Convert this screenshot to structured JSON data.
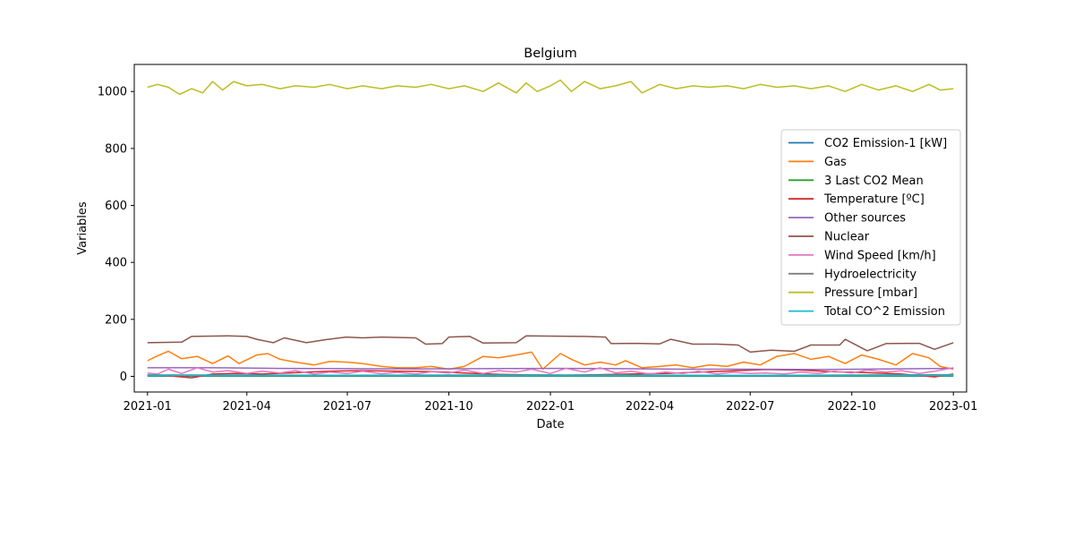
{
  "chart_data": {
    "type": "line",
    "title": "Belgium",
    "xlabel": "Date",
    "ylabel": "Variables",
    "x_range": [
      "2021-01-01",
      "2023-01-01"
    ],
    "xlim": [
      "2020-12-20",
      "2023-01-13"
    ],
    "ylim": [
      -55,
      1095
    ],
    "x_ticks": [
      {
        "date": "2021-01-01",
        "label": "2021-01"
      },
      {
        "date": "2021-04-01",
        "label": "2021-04"
      },
      {
        "date": "2021-07-01",
        "label": "2021-07"
      },
      {
        "date": "2021-10-01",
        "label": "2021-10"
      },
      {
        "date": "2022-01-01",
        "label": "2022-01"
      },
      {
        "date": "2022-04-01",
        "label": "2022-04"
      },
      {
        "date": "2022-07-01",
        "label": "2022-07"
      },
      {
        "date": "2022-10-01",
        "label": "2022-10"
      },
      {
        "date": "2023-01-01",
        "label": "2023-01"
      }
    ],
    "y_ticks": [
      0,
      200,
      400,
      600,
      800,
      1000
    ],
    "grid": false,
    "legend_position": "center-right",
    "series": [
      {
        "name": "CO2 Emission-1 [kW]",
        "color": "#1f77b4",
        "points": [
          [
            "2021-01-01",
            1
          ],
          [
            "2021-07-01",
            1
          ],
          [
            "2022-01-01",
            1
          ],
          [
            "2022-07-01",
            1
          ],
          [
            "2023-01-01",
            1
          ]
        ]
      },
      {
        "name": "Gas",
        "color": "#ff7f0e",
        "points": [
          [
            "2021-01-01",
            55
          ],
          [
            "2021-01-10",
            72
          ],
          [
            "2021-01-20",
            88
          ],
          [
            "2021-02-01",
            62
          ],
          [
            "2021-02-15",
            70
          ],
          [
            "2021-03-01",
            45
          ],
          [
            "2021-03-15",
            72
          ],
          [
            "2021-03-25",
            45
          ],
          [
            "2021-04-10",
            75
          ],
          [
            "2021-04-20",
            80
          ],
          [
            "2021-05-01",
            60
          ],
          [
            "2021-05-15",
            50
          ],
          [
            "2021-06-01",
            40
          ],
          [
            "2021-06-15",
            52
          ],
          [
            "2021-07-01",
            50
          ],
          [
            "2021-07-15",
            45
          ],
          [
            "2021-08-01",
            35
          ],
          [
            "2021-08-15",
            30
          ],
          [
            "2021-09-01",
            30
          ],
          [
            "2021-09-15",
            35
          ],
          [
            "2021-10-01",
            25
          ],
          [
            "2021-10-15",
            35
          ],
          [
            "2021-11-01",
            70
          ],
          [
            "2021-11-15",
            65
          ],
          [
            "2021-12-01",
            75
          ],
          [
            "2021-12-15",
            85
          ],
          [
            "2021-12-25",
            25
          ],
          [
            "2022-01-10",
            80
          ],
          [
            "2022-01-20",
            60
          ],
          [
            "2022-02-01",
            40
          ],
          [
            "2022-02-15",
            50
          ],
          [
            "2022-03-01",
            40
          ],
          [
            "2022-03-10",
            55
          ],
          [
            "2022-03-25",
            30
          ],
          [
            "2022-04-10",
            35
          ],
          [
            "2022-04-25",
            40
          ],
          [
            "2022-05-10",
            30
          ],
          [
            "2022-05-25",
            40
          ],
          [
            "2022-06-10",
            35
          ],
          [
            "2022-06-25",
            50
          ],
          [
            "2022-07-10",
            40
          ],
          [
            "2022-07-25",
            70
          ],
          [
            "2022-08-10",
            80
          ],
          [
            "2022-08-25",
            60
          ],
          [
            "2022-09-10",
            70
          ],
          [
            "2022-09-25",
            45
          ],
          [
            "2022-10-10",
            75
          ],
          [
            "2022-10-25",
            60
          ],
          [
            "2022-11-10",
            40
          ],
          [
            "2022-11-25",
            80
          ],
          [
            "2022-12-10",
            65
          ],
          [
            "2022-12-20",
            35
          ],
          [
            "2023-01-01",
            25
          ]
        ]
      },
      {
        "name": "3 Last CO2 Mean",
        "color": "#2ca02c",
        "points": [
          [
            "2021-01-01",
            2
          ],
          [
            "2021-07-01",
            2
          ],
          [
            "2022-01-01",
            2
          ],
          [
            "2022-07-01",
            2
          ],
          [
            "2023-01-01",
            2
          ]
        ]
      },
      {
        "name": "Temperature [ºC]",
        "color": "#d62728",
        "points": [
          [
            "2021-01-01",
            5
          ],
          [
            "2021-01-20",
            2
          ],
          [
            "2021-02-10",
            -5
          ],
          [
            "2021-03-01",
            8
          ],
          [
            "2021-03-20",
            10
          ],
          [
            "2021-04-15",
            8
          ],
          [
            "2021-05-15",
            13
          ],
          [
            "2021-06-15",
            18
          ],
          [
            "2021-07-15",
            20
          ],
          [
            "2021-08-15",
            18
          ],
          [
            "2021-09-15",
            17
          ],
          [
            "2021-10-15",
            12
          ],
          [
            "2021-11-15",
            7
          ],
          [
            "2021-12-15",
            5
          ],
          [
            "2022-01-15",
            4
          ],
          [
            "2022-02-15",
            6
          ],
          [
            "2022-03-15",
            8
          ],
          [
            "2022-04-15",
            10
          ],
          [
            "2022-05-15",
            15
          ],
          [
            "2022-06-15",
            19
          ],
          [
            "2022-07-15",
            24
          ],
          [
            "2022-08-15",
            22
          ],
          [
            "2022-09-15",
            16
          ],
          [
            "2022-10-15",
            13
          ],
          [
            "2022-11-15",
            8
          ],
          [
            "2022-12-15",
            -2
          ],
          [
            "2023-01-01",
            8
          ]
        ]
      },
      {
        "name": "Other sources",
        "color": "#9467bd",
        "points": [
          [
            "2021-01-01",
            30
          ],
          [
            "2021-03-01",
            30
          ],
          [
            "2021-05-01",
            28
          ],
          [
            "2021-07-01",
            27
          ],
          [
            "2021-09-01",
            26
          ],
          [
            "2021-11-01",
            27
          ],
          [
            "2022-01-01",
            28
          ],
          [
            "2022-03-01",
            27
          ],
          [
            "2022-05-01",
            25
          ],
          [
            "2022-07-01",
            25
          ],
          [
            "2022-09-01",
            24
          ],
          [
            "2022-11-01",
            26
          ],
          [
            "2023-01-01",
            28
          ]
        ]
      },
      {
        "name": "Nuclear",
        "color": "#8c564b",
        "points": [
          [
            "2021-01-01",
            118
          ],
          [
            "2021-02-01",
            120
          ],
          [
            "2021-02-10",
            140
          ],
          [
            "2021-03-15",
            142
          ],
          [
            "2021-04-01",
            140
          ],
          [
            "2021-04-10",
            130
          ],
          [
            "2021-04-25",
            118
          ],
          [
            "2021-05-05",
            135
          ],
          [
            "2021-05-25",
            118
          ],
          [
            "2021-06-10",
            128
          ],
          [
            "2021-06-30",
            138
          ],
          [
            "2021-07-15",
            135
          ],
          [
            "2021-08-01",
            138
          ],
          [
            "2021-09-01",
            135
          ],
          [
            "2021-09-10",
            113
          ],
          [
            "2021-09-25",
            115
          ],
          [
            "2021-10-01",
            138
          ],
          [
            "2021-10-20",
            140
          ],
          [
            "2021-11-01",
            117
          ],
          [
            "2021-12-01",
            118
          ],
          [
            "2021-12-10",
            142
          ],
          [
            "2022-02-01",
            140
          ],
          [
            "2022-02-20",
            138
          ],
          [
            "2022-02-25",
            115
          ],
          [
            "2022-03-20",
            116
          ],
          [
            "2022-04-10",
            114
          ],
          [
            "2022-04-20",
            130
          ],
          [
            "2022-05-10",
            113
          ],
          [
            "2022-06-01",
            113
          ],
          [
            "2022-06-20",
            110
          ],
          [
            "2022-07-01",
            85
          ],
          [
            "2022-07-20",
            92
          ],
          [
            "2022-08-10",
            88
          ],
          [
            "2022-08-25",
            110
          ],
          [
            "2022-09-20",
            110
          ],
          [
            "2022-09-25",
            130
          ],
          [
            "2022-10-15",
            90
          ],
          [
            "2022-11-01",
            115
          ],
          [
            "2022-12-01",
            116
          ],
          [
            "2022-12-15",
            95
          ],
          [
            "2023-01-01",
            118
          ]
        ]
      },
      {
        "name": "Wind Speed [km/h]",
        "color": "#e377c2",
        "points": [
          [
            "2021-01-01",
            12
          ],
          [
            "2021-01-10",
            8
          ],
          [
            "2021-01-20",
            25
          ],
          [
            "2021-02-01",
            10
          ],
          [
            "2021-02-15",
            30
          ],
          [
            "2021-03-01",
            15
          ],
          [
            "2021-03-15",
            20
          ],
          [
            "2021-04-01",
            10
          ],
          [
            "2021-04-15",
            18
          ],
          [
            "2021-05-01",
            12
          ],
          [
            "2021-05-15",
            20
          ],
          [
            "2021-06-01",
            8
          ],
          [
            "2021-06-15",
            15
          ],
          [
            "2021-07-01",
            10
          ],
          [
            "2021-07-15",
            18
          ],
          [
            "2021-08-01",
            9
          ],
          [
            "2021-08-15",
            14
          ],
          [
            "2021-09-01",
            8
          ],
          [
            "2021-09-15",
            16
          ],
          [
            "2021-10-01",
            12
          ],
          [
            "2021-10-15",
            22
          ],
          [
            "2021-11-01",
            10
          ],
          [
            "2021-11-15",
            20
          ],
          [
            "2021-12-01",
            15
          ],
          [
            "2021-12-15",
            25
          ],
          [
            "2022-01-01",
            10
          ],
          [
            "2022-01-15",
            28
          ],
          [
            "2022-02-01",
            15
          ],
          [
            "2022-02-15",
            30
          ],
          [
            "2022-03-01",
            12
          ],
          [
            "2022-03-15",
            18
          ],
          [
            "2022-04-01",
            8
          ],
          [
            "2022-04-15",
            15
          ],
          [
            "2022-05-01",
            10
          ],
          [
            "2022-05-15",
            18
          ],
          [
            "2022-06-01",
            8
          ],
          [
            "2022-06-15",
            14
          ],
          [
            "2022-07-01",
            10
          ],
          [
            "2022-07-15",
            12
          ],
          [
            "2022-08-01",
            8
          ],
          [
            "2022-08-15",
            15
          ],
          [
            "2022-09-01",
            10
          ],
          [
            "2022-09-15",
            18
          ],
          [
            "2022-10-01",
            12
          ],
          [
            "2022-10-15",
            22
          ],
          [
            "2022-11-01",
            15
          ],
          [
            "2022-11-15",
            20
          ],
          [
            "2022-12-01",
            10
          ],
          [
            "2022-12-15",
            18
          ],
          [
            "2023-01-01",
            30
          ]
        ]
      },
      {
        "name": "Hydroelectricity",
        "color": "#7f7f7f",
        "points": [
          [
            "2021-01-01",
            5
          ],
          [
            "2021-07-01",
            4
          ],
          [
            "2022-01-01",
            5
          ],
          [
            "2022-07-01",
            3
          ],
          [
            "2023-01-01",
            6
          ]
        ]
      },
      {
        "name": "Pressure [mbar]",
        "color": "#bcbd22",
        "points": [
          [
            "2021-01-01",
            1015
          ],
          [
            "2021-01-10",
            1025
          ],
          [
            "2021-01-20",
            1015
          ],
          [
            "2021-01-30",
            990
          ],
          [
            "2021-02-10",
            1010
          ],
          [
            "2021-02-20",
            995
          ],
          [
            "2021-03-01",
            1035
          ],
          [
            "2021-03-10",
            1005
          ],
          [
            "2021-03-20",
            1035
          ],
          [
            "2021-04-01",
            1020
          ],
          [
            "2021-04-15",
            1025
          ],
          [
            "2021-05-01",
            1010
          ],
          [
            "2021-05-15",
            1020
          ],
          [
            "2021-06-01",
            1015
          ],
          [
            "2021-06-15",
            1025
          ],
          [
            "2021-07-01",
            1010
          ],
          [
            "2021-07-15",
            1020
          ],
          [
            "2021-08-01",
            1010
          ],
          [
            "2021-08-15",
            1020
          ],
          [
            "2021-09-01",
            1015
          ],
          [
            "2021-09-15",
            1025
          ],
          [
            "2021-10-01",
            1010
          ],
          [
            "2021-10-15",
            1020
          ],
          [
            "2021-11-01",
            1000
          ],
          [
            "2021-11-15",
            1030
          ],
          [
            "2021-12-01",
            995
          ],
          [
            "2021-12-10",
            1030
          ],
          [
            "2021-12-20",
            1000
          ],
          [
            "2022-01-01",
            1020
          ],
          [
            "2022-01-10",
            1040
          ],
          [
            "2022-01-20",
            1000
          ],
          [
            "2022-02-01",
            1035
          ],
          [
            "2022-02-15",
            1010
          ],
          [
            "2022-03-01",
            1020
          ],
          [
            "2022-03-15",
            1035
          ],
          [
            "2022-03-25",
            995
          ],
          [
            "2022-04-10",
            1025
          ],
          [
            "2022-04-25",
            1010
          ],
          [
            "2022-05-10",
            1020
          ],
          [
            "2022-05-25",
            1015
          ],
          [
            "2022-06-10",
            1020
          ],
          [
            "2022-06-25",
            1010
          ],
          [
            "2022-07-10",
            1025
          ],
          [
            "2022-07-25",
            1015
          ],
          [
            "2022-08-10",
            1020
          ],
          [
            "2022-08-25",
            1010
          ],
          [
            "2022-09-10",
            1020
          ],
          [
            "2022-09-25",
            1000
          ],
          [
            "2022-10-10",
            1025
          ],
          [
            "2022-10-25",
            1005
          ],
          [
            "2022-11-10",
            1020
          ],
          [
            "2022-11-25",
            1000
          ],
          [
            "2022-12-10",
            1025
          ],
          [
            "2022-12-20",
            1005
          ],
          [
            "2023-01-01",
            1010
          ]
        ]
      },
      {
        "name": "Total CO^2 Emission",
        "color": "#17becf",
        "points": [
          [
            "2021-01-01",
            3
          ],
          [
            "2021-07-01",
            3
          ],
          [
            "2022-01-01",
            3
          ],
          [
            "2022-07-01",
            3
          ],
          [
            "2023-01-01",
            3
          ]
        ]
      }
    ]
  }
}
